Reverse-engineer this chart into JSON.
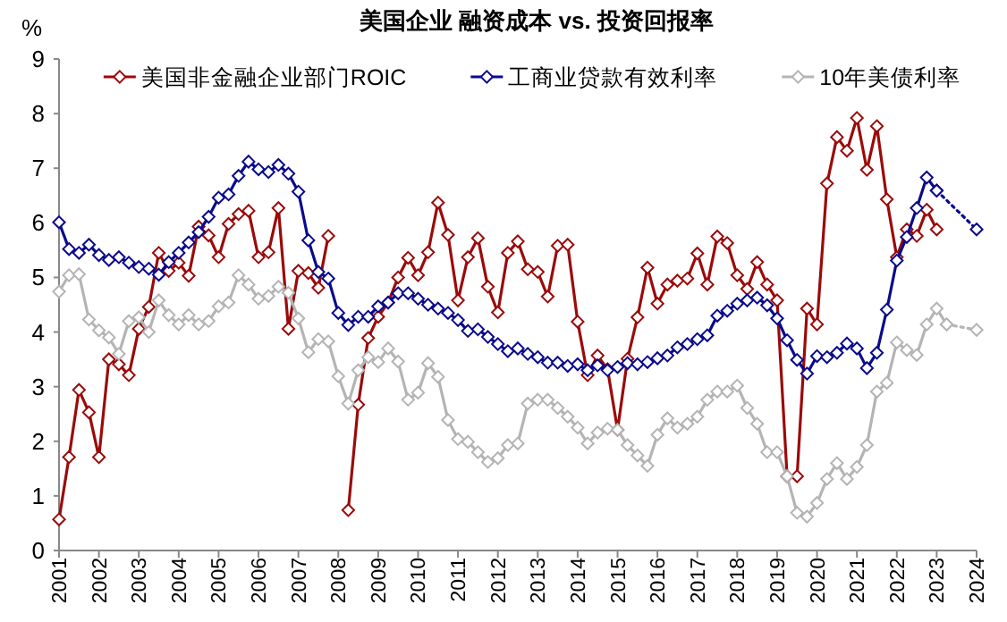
{
  "chart_data": {
    "type": "line",
    "title": "美国企业 融资成本 vs. 投资回报率",
    "ylabel": "%",
    "x": [
      2001,
      2001.25,
      2001.5,
      2001.75,
      2002,
      2002.25,
      2002.5,
      2002.75,
      2003,
      2003.25,
      2003.5,
      2003.75,
      2004,
      2004.25,
      2004.5,
      2004.75,
      2005,
      2005.25,
      2005.5,
      2005.75,
      2006,
      2006.25,
      2006.5,
      2006.75,
      2007,
      2007.25,
      2007.5,
      2007.75,
      2008,
      2008.25,
      2008.5,
      2008.75,
      2009,
      2009.25,
      2009.5,
      2009.75,
      2010,
      2010.25,
      2010.5,
      2010.75,
      2011,
      2011.25,
      2011.5,
      2011.75,
      2012,
      2012.25,
      2012.5,
      2012.75,
      2013,
      2013.25,
      2013.5,
      2013.75,
      2014,
      2014.25,
      2014.5,
      2014.75,
      2015,
      2015.25,
      2015.5,
      2015.75,
      2016,
      2016.25,
      2016.5,
      2016.75,
      2017,
      2017.25,
      2017.5,
      2017.75,
      2018,
      2018.25,
      2018.5,
      2018.75,
      2019,
      2019.25,
      2019.5,
      2019.75,
      2020,
      2020.25,
      2020.5,
      2020.75,
      2021,
      2021.25,
      2021.5,
      2021.75,
      2022,
      2022.25,
      2022.5,
      2022.75,
      2023,
      2023.25
    ],
    "series": [
      {
        "name": "美国非金融企业部门ROIC",
        "color": "#9b0a0a",
        "marker": "diamond",
        "values": [
          0.57,
          1.71,
          2.94,
          2.53,
          1.71,
          3.5,
          3.41,
          3.21,
          4.06,
          4.46,
          5.45,
          5.12,
          5.27,
          5.03,
          5.93,
          5.77,
          5.37,
          5.98,
          6.16,
          6.22,
          5.37,
          5.46,
          6.27,
          4.06,
          5.12,
          5.08,
          4.81,
          5.76,
          null,
          0.74,
          2.67,
          3.89,
          4.28,
          4.54,
          5.0,
          5.36,
          5.04,
          5.46,
          6.37,
          5.78,
          4.58,
          5.37,
          5.72,
          4.83,
          4.36,
          5.45,
          5.66,
          5.15,
          5.1,
          4.65,
          5.58,
          5.6,
          4.19,
          3.21,
          3.57,
          3.32,
          2.21,
          3.51,
          4.27,
          5.18,
          4.52,
          4.87,
          4.94,
          4.98,
          5.44,
          4.87,
          5.75,
          5.63,
          5.04,
          4.79,
          5.28,
          4.87,
          4.58,
          1.36,
          1.36,
          4.43,
          4.14,
          6.72,
          7.57,
          7.32,
          7.92,
          6.97,
          7.77,
          6.43,
          5.37,
          5.88,
          5.76,
          6.24,
          5.88,
          null
        ]
      },
      {
        "name": "工商业贷款有效利率",
        "color": "#0a0a8c",
        "marker": "diamond",
        "values": [
          6.01,
          5.52,
          5.45,
          5.6,
          5.41,
          5.32,
          5.37,
          5.27,
          5.19,
          5.16,
          5.05,
          5.28,
          5.45,
          5.64,
          5.83,
          6.11,
          6.46,
          6.52,
          6.86,
          7.12,
          6.98,
          6.93,
          7.06,
          6.9,
          6.57,
          5.68,
          5.1,
          4.98,
          4.35,
          4.13,
          4.28,
          4.28,
          4.47,
          4.54,
          4.71,
          4.71,
          4.61,
          4.5,
          4.43,
          4.35,
          4.22,
          4.02,
          4.05,
          3.91,
          3.78,
          3.65,
          3.7,
          3.6,
          3.54,
          3.44,
          3.44,
          3.38,
          3.41,
          3.3,
          3.39,
          3.3,
          3.36,
          3.43,
          3.41,
          3.45,
          3.52,
          3.57,
          3.72,
          3.78,
          3.87,
          3.94,
          4.3,
          4.39,
          4.52,
          4.58,
          4.63,
          4.49,
          4.25,
          3.85,
          3.49,
          3.24,
          3.56,
          3.54,
          3.62,
          3.79,
          3.7,
          3.34,
          3.62,
          4.41,
          5.31,
          5.74,
          6.27,
          6.83,
          6.59,
          null
        ]
      },
      {
        "name": "10年美债利率",
        "color": "#b4b4b4",
        "marker": "diamond",
        "values": [
          4.74,
          5.04,
          5.06,
          4.23,
          4.03,
          3.9,
          3.6,
          4.2,
          4.27,
          4.0,
          4.58,
          4.31,
          4.14,
          4.31,
          4.14,
          4.2,
          4.47,
          4.54,
          5.04,
          4.87,
          4.61,
          4.66,
          4.83,
          4.72,
          4.25,
          3.63,
          3.87,
          3.83,
          3.19,
          2.69,
          3.3,
          3.54,
          3.45,
          3.7,
          3.46,
          2.76,
          2.89,
          3.43,
          3.18,
          2.39,
          2.04,
          1.99,
          1.8,
          1.62,
          1.69,
          1.93,
          1.96,
          2.69,
          2.76,
          2.76,
          2.61,
          2.45,
          2.25,
          1.96,
          2.16,
          2.23,
          2.21,
          1.93,
          1.74,
          1.55,
          2.12,
          2.42,
          2.25,
          2.32,
          2.45,
          2.76,
          2.91,
          2.91,
          3.02,
          2.61,
          2.32,
          1.8,
          1.8,
          1.36,
          0.69,
          0.62,
          0.87,
          1.31,
          1.6,
          1.31,
          1.53,
          1.93,
          2.91,
          3.07,
          3.81,
          3.67,
          3.58,
          4.14,
          4.43,
          4.14
        ]
      },
      {
        "color": "#0a0a8c",
        "marker": "diamond",
        "line_style": "dotted",
        "x": [
          2023,
          2024
        ],
        "values": [
          6.59,
          5.88
        ]
      },
      {
        "color": "#b4b4b4",
        "marker": "diamond",
        "line_style": "dotted",
        "x": [
          2023.25,
          2024
        ],
        "values": [
          4.14,
          4.04
        ]
      }
    ],
    "xlim": [
      2001,
      2024
    ],
    "xticks": [
      2001,
      2002,
      2003,
      2004,
      2005,
      2006,
      2007,
      2008,
      2009,
      2010,
      2011,
      2012,
      2013,
      2014,
      2015,
      2016,
      2017,
      2018,
      2019,
      2020,
      2021,
      2022,
      2023,
      2024
    ],
    "ylim": [
      0,
      9
    ],
    "yticks": [
      0,
      1,
      2,
      3,
      4,
      5,
      6,
      7,
      8,
      9
    ],
    "grid": false,
    "legend": "top"
  }
}
